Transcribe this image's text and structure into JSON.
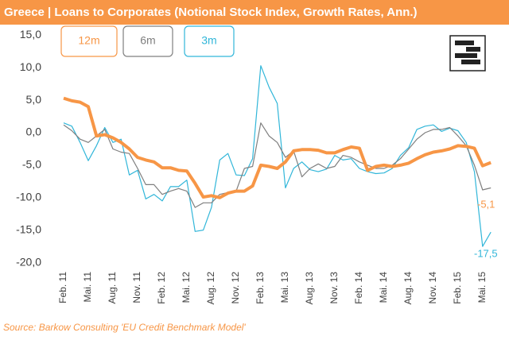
{
  "chart_data": {
    "type": "line",
    "title": "Greece | Loans to Corporates (Notional Stock Index, Growth Rates, Ann.)",
    "source": "Source: Barkow Consulting 'EU Credit Benchmark Model'",
    "categories": [
      "Feb. 11",
      null,
      null,
      "Mai. 11",
      null,
      null,
      "Aug. 11",
      null,
      null,
      "Nov. 11",
      null,
      null,
      "Feb. 12",
      null,
      null,
      "Mai. 12",
      null,
      null,
      "Aug. 12",
      null,
      null,
      "Nov. 12",
      null,
      null,
      "Feb. 13",
      null,
      null,
      "Mai. 13",
      null,
      null,
      "Aug. 13",
      null,
      null,
      "Nov. 13",
      null,
      null,
      "Feb. 14",
      null,
      null,
      "Mai. 14",
      null,
      null,
      "Aug. 14",
      null,
      null,
      "Nov. 14",
      null,
      null,
      "Feb. 15",
      null,
      null,
      "Mai. 15",
      null
    ],
    "series": [
      {
        "name": "12m",
        "color": "#f79646",
        "width": 4,
        "values": [
          5.3,
          4.9,
          4.7,
          4.0,
          -0.5,
          -0.3,
          -0.8,
          -1.5,
          -2.5,
          -3.8,
          -4.2,
          -4.5,
          -5.4,
          -5.4,
          -5.8,
          -5.9,
          -7.8,
          -9.9,
          -9.7,
          -10.0,
          -9.3,
          -9.0,
          -9.0,
          -8.2,
          -5.0,
          -5.2,
          -5.5,
          -4.5,
          -2.8,
          -2.6,
          -2.6,
          -2.7,
          -3.1,
          -3.1,
          -2.6,
          -2.2,
          -2.4,
          -5.8,
          -5.2,
          -5.0,
          -5.2,
          -5.0,
          -4.7,
          -4.0,
          -3.4,
          -3.0,
          -2.8,
          -2.5,
          -2.0,
          -2.1,
          -2.4,
          -5.1,
          -4.6
        ]
      },
      {
        "name": "6m",
        "color": "#7f7f7f",
        "width": 1.2,
        "values": [
          1.2,
          0.3,
          -1.0,
          -1.5,
          -0.5,
          0.5,
          -2.5,
          -3.0,
          -3.2,
          -5.5,
          -8.0,
          -8.0,
          -9.5,
          -9.0,
          -8.6,
          -9.0,
          -11.5,
          -10.8,
          -10.8,
          -9.5,
          -9.2,
          -9.0,
          -5.5,
          -5.2,
          1.5,
          -0.5,
          -1.5,
          -3.8,
          -2.8,
          -6.8,
          -5.5,
          -4.8,
          -5.5,
          -5.2,
          -3.5,
          -3.8,
          -4.5,
          -5.0,
          -5.5,
          -5.5,
          -5.0,
          -4.0,
          -2.5,
          -1.0,
          0.0,
          0.5,
          0.5,
          0.8,
          -0.5,
          -2.0,
          -5.0,
          -8.8,
          -8.5
        ]
      },
      {
        "name": "3m",
        "color": "#31b6d9",
        "width": 1.2,
        "values": [
          1.5,
          1.0,
          -1.5,
          -4.3,
          -2.0,
          0.8,
          -1.5,
          -1.0,
          -6.5,
          -5.8,
          -10.2,
          -9.5,
          -10.5,
          -8.3,
          -8.3,
          -7.3,
          -15.2,
          -15.0,
          -11.5,
          -4.2,
          -3.2,
          -6.5,
          -6.6,
          -4.0,
          10.3,
          7.0,
          4.5,
          -8.5,
          -5.5,
          -4.5,
          -5.7,
          -6.0,
          -5.6,
          -3.5,
          -4.2,
          -4.0,
          -5.5,
          -6.0,
          -6.3,
          -6.2,
          -5.5,
          -3.5,
          -2.3,
          0.5,
          1.0,
          1.2,
          0.2,
          0.7,
          0.3,
          -1.5,
          -6.0,
          -17.5,
          -15.3
        ]
      }
    ],
    "annotations": [
      {
        "text": "-5,1",
        "color": "#f79646"
      },
      {
        "text": "-17,5",
        "color": "#31b6d9"
      }
    ],
    "ylim": [
      -20,
      15
    ],
    "yticks": [
      {
        "value": 15,
        "label": "15,0"
      },
      {
        "value": 10,
        "label": "10,0"
      },
      {
        "value": 5,
        "label": "5,0"
      },
      {
        "value": 0,
        "label": "0,0"
      },
      {
        "value": -5,
        "label": "-5,0"
      },
      {
        "value": -10,
        "label": "-10,0"
      },
      {
        "value": -15,
        "label": "-15,0"
      },
      {
        "value": -20,
        "label": "-20,0"
      }
    ],
    "grid": false
  }
}
